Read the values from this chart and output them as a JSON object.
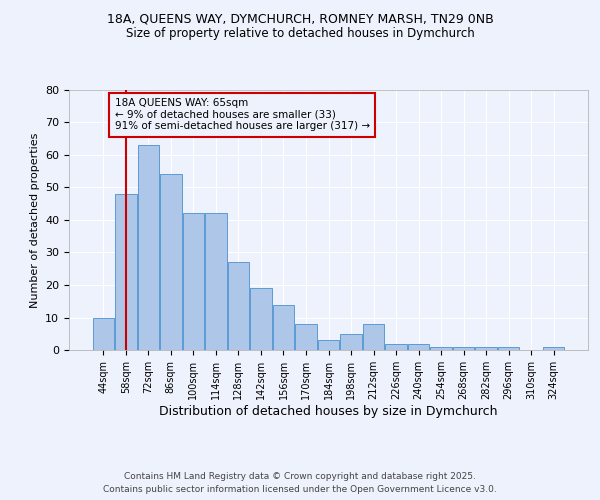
{
  "title1": "18A, QUEENS WAY, DYMCHURCH, ROMNEY MARSH, TN29 0NB",
  "title2": "Size of property relative to detached houses in Dymchurch",
  "xlabel": "Distribution of detached houses by size in Dymchurch",
  "ylabel": "Number of detached properties",
  "categories": [
    "44sqm",
    "58sqm",
    "72sqm",
    "86sqm",
    "100sqm",
    "114sqm",
    "128sqm",
    "142sqm",
    "156sqm",
    "170sqm",
    "184sqm",
    "198sqm",
    "212sqm",
    "226sqm",
    "240sqm",
    "254sqm",
    "268sqm",
    "282sqm",
    "296sqm",
    "310sqm",
    "324sqm"
  ],
  "values": [
    10,
    48,
    63,
    54,
    42,
    42,
    27,
    19,
    14,
    8,
    3,
    5,
    8,
    2,
    2,
    1,
    1,
    1,
    1,
    0,
    1
  ],
  "bar_color": "#aec6e8",
  "bar_edge_color": "#5b9bd5",
  "background_color": "#eef2fc",
  "grid_color": "#ffffff",
  "vline_x": 1.0,
  "vline_color": "#cc0000",
  "annotation_text": "18A QUEENS WAY: 65sqm\n← 9% of detached houses are smaller (33)\n91% of semi-detached houses are larger (317) →",
  "annotation_box_color": "#cc0000",
  "ylim": [
    0,
    80
  ],
  "yticks": [
    0,
    10,
    20,
    30,
    40,
    50,
    60,
    70,
    80
  ],
  "footer1": "Contains HM Land Registry data © Crown copyright and database right 2025.",
  "footer2": "Contains public sector information licensed under the Open Government Licence v3.0."
}
